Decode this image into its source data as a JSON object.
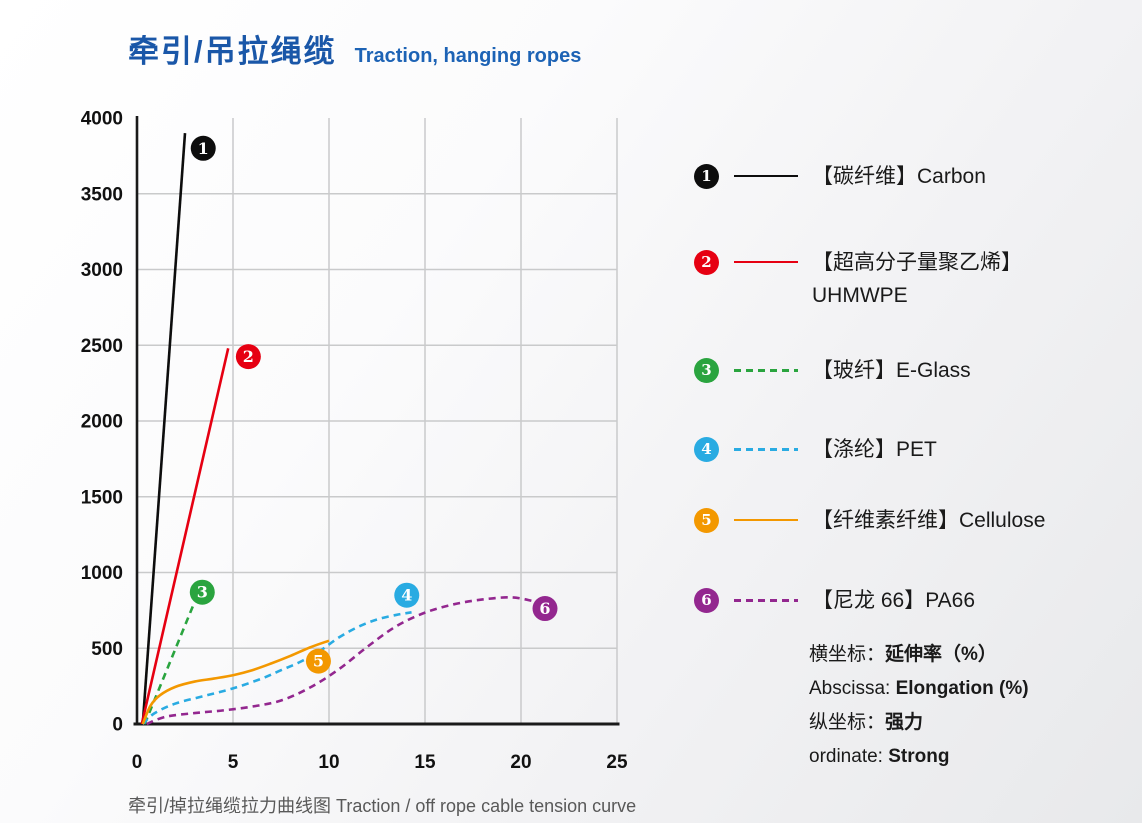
{
  "page": {
    "title_cn": "牵引/吊拉绳缆",
    "title_en": "Traction, hanging ropes",
    "caption": "牵引/掉拉绳缆拉力曲线图  Traction / off rope cable tension curve"
  },
  "colors": {
    "title_blue": "#1a57a8",
    "axis": "#1a1a1a",
    "grid": "#c9cacb",
    "tick_text": "#111111",
    "caption_gray": "#595959"
  },
  "chart_data": {
    "type": "line",
    "title": "牵引/掉拉绳缆拉力曲线图 Traction / off rope cable tension curve",
    "xlabel": "延伸率 Elongation (%)",
    "ylabel": "强力 Strong",
    "xlim": [
      0,
      25
    ],
    "ylim": [
      0,
      4000
    ],
    "x_ticks": [
      0,
      5,
      10,
      15,
      20,
      25
    ],
    "y_ticks": [
      0,
      500,
      1000,
      1500,
      2000,
      2500,
      3000,
      3500,
      4000
    ],
    "grid": true,
    "legend_position": "right",
    "series": [
      {
        "num": "1",
        "name_cn": "碳纤维",
        "name_en": "Carbon",
        "color": "#0d0d0d",
        "style": "solid",
        "points": [
          [
            0.3,
            0
          ],
          [
            2.5,
            3900
          ]
        ],
        "marker_at": [
          3.45,
          3800
        ]
      },
      {
        "num": "2",
        "name_cn": "超高分子量聚乙烯",
        "name_en": "UHMWPE",
        "color": "#e60012",
        "style": "solid",
        "points": [
          [
            0.25,
            0
          ],
          [
            4.75,
            2480
          ]
        ],
        "marker_at": [
          5.8,
          2425
        ]
      },
      {
        "num": "3",
        "name_cn": "玻纤",
        "name_en": "E-Glass",
        "color": "#2aa43f",
        "style": "dashed",
        "points": [
          [
            0.4,
            0
          ],
          [
            2.95,
            790
          ]
        ],
        "marker_at": [
          3.4,
          870
        ]
      },
      {
        "num": "4",
        "name_cn": "涤纶",
        "name_en": "PET",
        "color": "#29abe2",
        "style": "dashed",
        "points": [
          [
            0.3,
            0
          ],
          [
            0.9,
            70
          ],
          [
            2,
            135
          ],
          [
            3.5,
            185
          ],
          [
            5,
            235
          ],
          [
            6.5,
            300
          ],
          [
            7.5,
            355
          ],
          [
            8.5,
            410
          ],
          [
            9.5,
            480
          ],
          [
            10.5,
            570
          ],
          [
            11.5,
            640
          ],
          [
            12.5,
            690
          ],
          [
            13.5,
            720
          ],
          [
            14.3,
            737
          ]
        ],
        "marker_at": [
          14.05,
          850
        ]
      },
      {
        "num": "5",
        "name_cn": "纤维素纤维",
        "name_en": "Cellulose",
        "color": "#f39800",
        "style": "solid",
        "points": [
          [
            0.3,
            0
          ],
          [
            0.7,
            120
          ],
          [
            1.2,
            190
          ],
          [
            2,
            245
          ],
          [
            3,
            280
          ],
          [
            4,
            300
          ],
          [
            5,
            322
          ],
          [
            6,
            355
          ],
          [
            7,
            400
          ],
          [
            8,
            450
          ],
          [
            9,
            505
          ],
          [
            10,
            550
          ]
        ],
        "marker_at": [
          9.45,
          415
        ]
      },
      {
        "num": "6",
        "name_cn": "尼龙 66",
        "name_en": "PA66",
        "color": "#93278f",
        "style": "dashed",
        "points": [
          [
            0.5,
            0
          ],
          [
            1.5,
            48
          ],
          [
            3,
            72
          ],
          [
            4.5,
            90
          ],
          [
            6,
            115
          ],
          [
            7.5,
            155
          ],
          [
            9,
            240
          ],
          [
            10.5,
            360
          ],
          [
            12,
            510
          ],
          [
            13.5,
            645
          ],
          [
            15,
            735
          ],
          [
            16.5,
            790
          ],
          [
            18,
            822
          ],
          [
            19.5,
            836
          ],
          [
            20.6,
            812
          ]
        ],
        "marker_at": [
          21.25,
          762
        ]
      }
    ]
  },
  "legend": {
    "items": [
      {
        "num": "1",
        "color": "#0d0d0d",
        "style": "solid",
        "label": "【碳纤维】Carbon",
        "label2": ""
      },
      {
        "num": "2",
        "color": "#e60012",
        "style": "solid",
        "label": "【超高分子量聚乙烯】",
        "label2": "UHMWPE"
      },
      {
        "num": "3",
        "color": "#2aa43f",
        "style": "dashed",
        "label": "【玻纤】E-Glass",
        "label2": ""
      },
      {
        "num": "4",
        "color": "#29abe2",
        "style": "dashed",
        "label": "【涤纶】PET",
        "label2": ""
      },
      {
        "num": "5",
        "color": "#f39800",
        "style": "solid",
        "label": "【纤维素纤维】Cellulose",
        "label2": ""
      },
      {
        "num": "6",
        "color": "#93278f",
        "style": "dashed",
        "label": "【尼龙 66】PA66",
        "label2": ""
      }
    ],
    "notes": [
      {
        "normal": "横坐标：",
        "bold": "延伸率（%）"
      },
      {
        "normal": "Abscissa: ",
        "bold": "Elongation (%)"
      },
      {
        "normal": "纵坐标：",
        "bold": "强力"
      },
      {
        "normal": "ordinate: ",
        "bold": "Strong"
      }
    ]
  }
}
